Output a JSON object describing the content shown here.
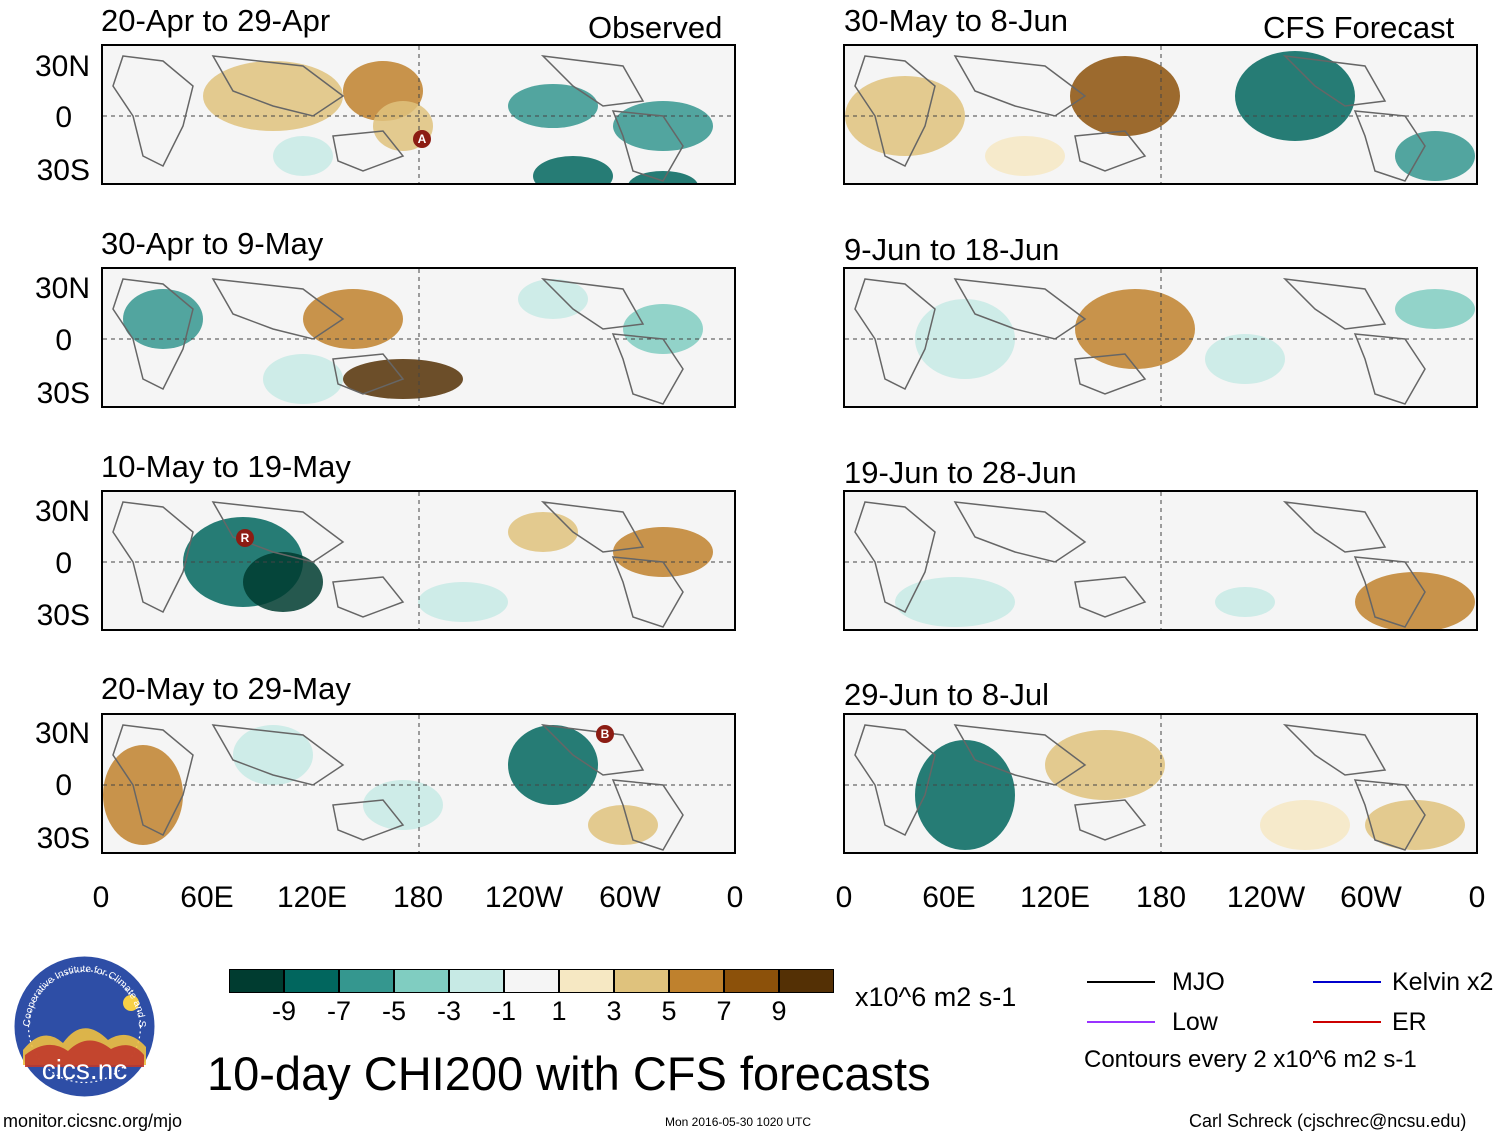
{
  "header": {
    "observed_label": "Observed",
    "forecast_label": "CFS Forecast"
  },
  "panels": {
    "observed": [
      "20-Apr to 29-Apr",
      "30-Apr to 9-May",
      "10-May to 19-May",
      "20-May to 29-May"
    ],
    "forecast": [
      "30-May to 8-Jun",
      "9-Jun to 18-Jun",
      "19-Jun to 28-Jun",
      "29-Jun to 8-Jul"
    ]
  },
  "axes": {
    "lat_labels": [
      "30N",
      "0",
      "30S"
    ],
    "lon_labels": [
      "0",
      "60E",
      "120E",
      "180",
      "120W",
      "60W",
      "0"
    ]
  },
  "storm_markers": {
    "panel1": "A",
    "panel3": "R",
    "panel4": "B"
  },
  "colorbar": {
    "colors": [
      "#003c30",
      "#01665e",
      "#35978f",
      "#80cdc1",
      "#c7eae5",
      "#f5f5f5",
      "#f6e8c3",
      "#dfc27d",
      "#bf812d",
      "#8c510a",
      "#543005"
    ],
    "labels": [
      "-9",
      "-7",
      "-5",
      "-3",
      "-1",
      "1",
      "3",
      "5",
      "7",
      "9"
    ],
    "units": "x10^6 m2 s-1"
  },
  "legend": {
    "mjo": "MJO",
    "low": "Low",
    "kelvin": "Kelvin x2",
    "er": "ER",
    "mjo_color": "#000000",
    "low_color": "#9933ff",
    "kelvin_color": "#0000cc",
    "er_color": "#cc0000",
    "contours_note": "Contours every 2 x10^6 m2 s-1"
  },
  "main_title": "10-day CHI200 with CFS forecasts",
  "logo_text": "cics.nc",
  "logo_ring_text": "Cooperative Institute for Climate and Satellites",
  "footer": {
    "url": "monitor.cicsnc.org/mjo",
    "timestamp": "Mon 2016-05-30 1020 UTC",
    "author": "Carl Schreck (cjschrec@ncsu.edu)"
  }
}
